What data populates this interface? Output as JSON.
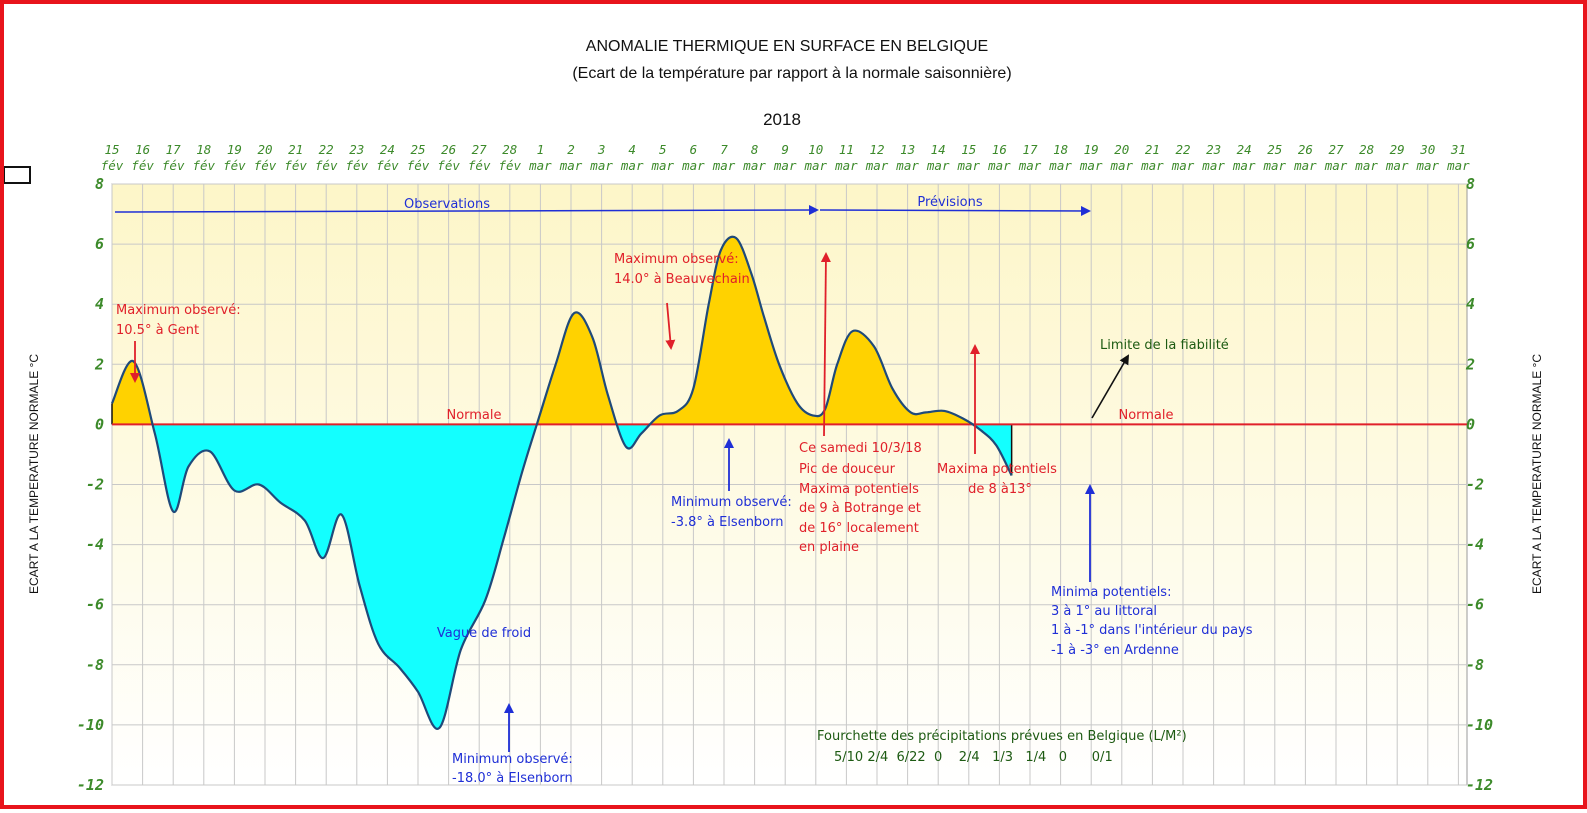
{
  "chart_data": {
    "type": "area",
    "title": "ANOMALIE THERMIQUE EN SURFACE EN BELGIQUE",
    "subtitle": "(Ecart de la température par rapport à la normale saisonnière)",
    "year": "2018",
    "ylabel": "ECART A LA TEMPERATURE NORMALE  °C",
    "ylim": [
      -12,
      8
    ],
    "yticks": [
      "8",
      "6",
      "4",
      "2",
      "0",
      "-2",
      "-4",
      "-6",
      "-8",
      "-10",
      "-12"
    ],
    "x_days": [
      "15",
      "16",
      "17",
      "18",
      "19",
      "20",
      "21",
      "22",
      "23",
      "24",
      "25",
      "26",
      "27",
      "28",
      "1",
      "2",
      "3",
      "4",
      "5",
      "6",
      "7",
      "8",
      "9",
      "10",
      "11",
      "12",
      "13",
      "14",
      "15",
      "16",
      "17",
      "18",
      "19",
      "20",
      "21",
      "22",
      "23",
      "24",
      "25",
      "26",
      "27",
      "28",
      "29",
      "30",
      "31"
    ],
    "x_months": [
      "fév",
      "fév",
      "fév",
      "fév",
      "fév",
      "fév",
      "fév",
      "fév",
      "fév",
      "fév",
      "fév",
      "fév",
      "fév",
      "fév",
      "mar",
      "mar",
      "mar",
      "mar",
      "mar",
      "mar",
      "mar",
      "mar",
      "mar",
      "mar",
      "mar",
      "mar",
      "mar",
      "mar",
      "mar",
      "mar",
      "mar",
      "mar",
      "mar",
      "mar",
      "mar",
      "mar",
      "mar",
      "mar",
      "mar",
      "mar",
      "mar",
      "mar",
      "mar",
      "mar",
      "mar"
    ],
    "series": [
      {
        "x": [
          0,
          0.7,
          1.4,
          2.0,
          2.5,
          3.2,
          4.0,
          4.8,
          5.5,
          6.3,
          6.9,
          7.5,
          8.1,
          8.7,
          9.4,
          10.0,
          10.7,
          11.4,
          12.2,
          12.8,
          13.4,
          13.9,
          14.5,
          15.1,
          15.7,
          16.2,
          16.8,
          17.3,
          17.9,
          18.5,
          19.0,
          19.5,
          19.9,
          20.4,
          20.9,
          21.3,
          21.8,
          22.4,
          22.9,
          23.3,
          23.7,
          24.2,
          24.9,
          25.5,
          26.1,
          26.6,
          27.2,
          27.8,
          28.4,
          28.9,
          29.4,
          29.9,
          30.5,
          31.1,
          31.6,
          32.0,
          32.4
        ],
        "y": [
          0.7,
          2.1,
          -0.3,
          -2.9,
          -1.4,
          -0.9,
          -2.2,
          -2.0,
          -2.6,
          -3.2,
          -4.45,
          -3.0,
          -5.4,
          -7.3,
          -8.1,
          -8.9,
          -10.1,
          -7.5,
          -5.85,
          -3.8,
          -1.6,
          0.05,
          2.0,
          3.7,
          2.9,
          1.0,
          -0.75,
          -0.3,
          0.3,
          0.45,
          1.2,
          4.0,
          5.8,
          6.2,
          5.0,
          3.6,
          2.0,
          0.7,
          0.3,
          0.5,
          2.0,
          3.1,
          2.6,
          1.2,
          0.4,
          0.4,
          0.45,
          0.2,
          -0.2,
          -0.7,
          -1.7,
          null,
          null,
          null,
          null,
          null,
          null
        ]
      }
    ],
    "reference_label_left": "Normale",
    "reference_label_right": "Normale",
    "header_arrows": {
      "observations": "Observations",
      "previsions": "Prévisions"
    },
    "annotations": {
      "max1_l1": "Maximum observé:",
      "max1_l2": "10.5° à Gent",
      "max2_l1": "Maximum observé:",
      "max2_l2": "14.0° à Beauvechain",
      "min1_l1": "Minimum observé:",
      "min1_l2": "-3.8° à Elsenborn",
      "min2_l1": "Minimum observé:",
      "min2_l2": "-18.0° à Elsenborn",
      "cold_wave": "Vague de froid",
      "peak_l1": "Ce   samedi 10/3/18",
      "peak_l2": "Pic de douceur",
      "peak_l3": "Maxima potentiels",
      "peak_l4": "de 9  à Botrange et",
      "peak_l5": "de 16° localement",
      "peak_l6": "en plaine",
      "maxpot_l1": "Maxima potentiels",
      "maxpot_l2": "de 8 à13°",
      "reliability": "Limite de la fiabilité",
      "minpot_l1": "Minima potentiels:",
      "minpot_l2": "3 à 1° au littoral",
      "minpot_l3": "1 à -1° dans l'intérieur du pays",
      "minpot_l4": "-1 à -3° en Ardenne",
      "precip_title": "Fourchette des précipitations prévues en Belgique (L/M²)",
      "precip_values": "5/10 2/4  6/22  0    2/4   1/3   1/4   0      0/1"
    },
    "colors": {
      "positive_fill": "#ffd200",
      "negative_fill": "#13ffff",
      "curve": "#1f4a7a",
      "normal_line": "#e0202a",
      "grid": "#c8c8c8",
      "tick_text": "#3c8a2a",
      "background_top": "#fdf6c8",
      "background_bottom": "#ffffff",
      "frame": "#e8141c"
    }
  }
}
